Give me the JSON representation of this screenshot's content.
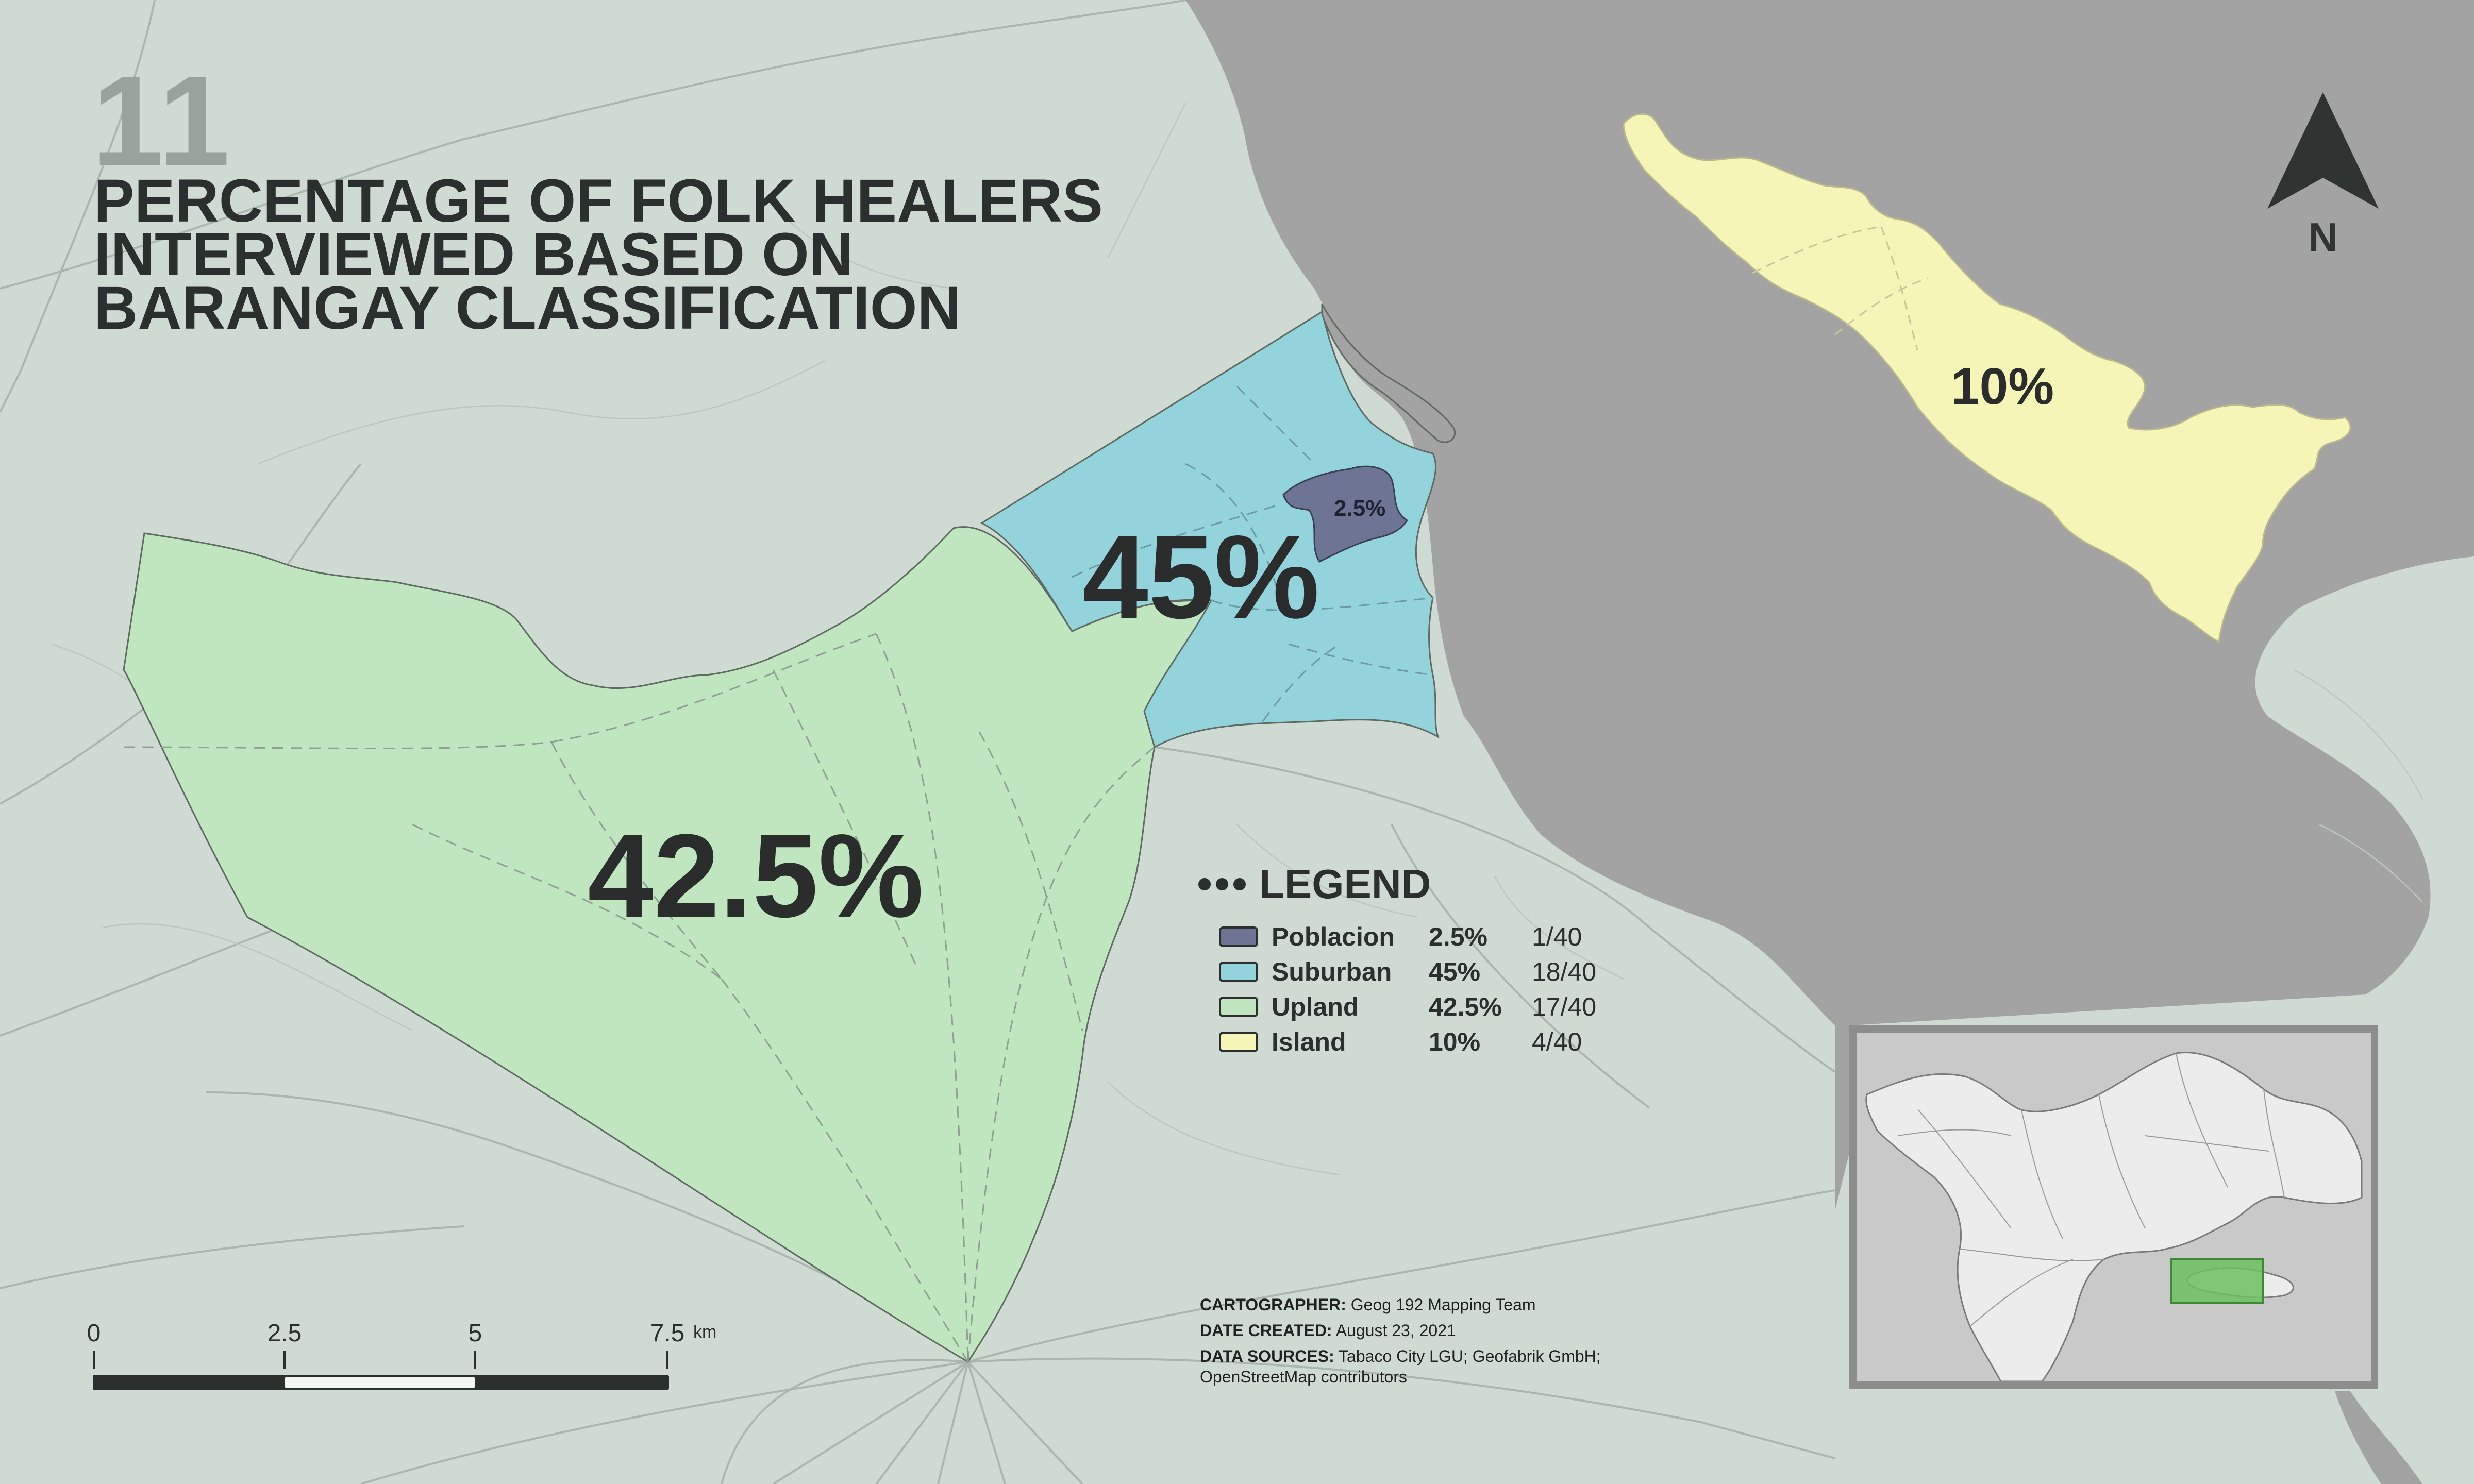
{
  "map_number": "11",
  "title_lines": [
    "PERCENTAGE OF FOLK HEALERS",
    "INTERVIEWED BASED ON",
    "BARANGAY CLASSIFICATION"
  ],
  "region_labels": {
    "suburban": "45%",
    "upland": "42.5%",
    "island": "10%",
    "poblacion": "2.5%"
  },
  "legend": {
    "title": "LEGEND",
    "items": [
      {
        "name": "Poblacion",
        "percent": "2.5%",
        "count": "1/40",
        "color": "#6e7594"
      },
      {
        "name": "Suburban",
        "percent": "45%",
        "count": "18/40",
        "color": "#93d3dc"
      },
      {
        "name": "Upland",
        "percent": "42.5%",
        "count": "17/40",
        "color": "#c0e6bf"
      },
      {
        "name": "Island",
        "percent": "10%",
        "count": "4/40",
        "color": "#f5f5b8"
      }
    ]
  },
  "credits": {
    "cartographer_label": "CARTOGRAPHER:",
    "cartographer": "Geog 192 Mapping Team",
    "date_label": "DATE CREATED:",
    "date": "August 23, 2021",
    "sources_label": "DATA SOURCES:",
    "sources_line1": "Tabaco City LGU; Geofabrik GmbH;",
    "sources_line2": "OpenStreetMap contributors"
  },
  "scale_bar": {
    "labels": [
      "0",
      "2.5",
      "5",
      "7.5"
    ],
    "unit": "km"
  },
  "north_arrow": {
    "label": "N",
    "icon": "north-arrow-icon"
  },
  "colors": {
    "land": "#cfdad3",
    "water": "#a3a3a3",
    "poblacion": "#6e7594",
    "suburban": "#93d3dc",
    "upland": "#c0e6bf",
    "island": "#f5f5b8",
    "text": "#2b2f2d"
  }
}
